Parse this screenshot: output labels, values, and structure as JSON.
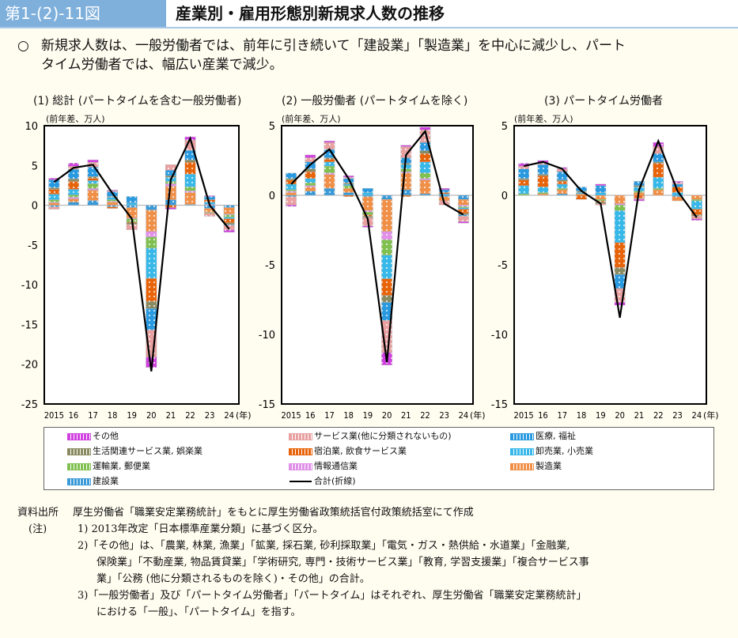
{
  "header": {
    "figure_label": "第1-(2)-11図",
    "title": "産業別・雇用形態別新規求人数の推移"
  },
  "summary": {
    "mark": "○",
    "line1": "新規求人数は、一般労働者では、前年に引き続いて「建設業」「製造業」を中心に減少し、パート",
    "line2": "タイム労働者では、幅広い産業で減少。"
  },
  "legend": [
    {
      "key": "other",
      "label": "その他",
      "color": "#d040e0"
    },
    {
      "key": "service",
      "label": "サービス業(他に分類されないもの)",
      "color": "#e8a0a0"
    },
    {
      "key": "medical",
      "label": "医療, 福祉",
      "color": "#2a9ae0"
    },
    {
      "key": "living",
      "label": "生活関連サービス業, 娯楽業",
      "color": "#8a8a60"
    },
    {
      "key": "hotel",
      "label": "宿泊業, 飲食サービス業",
      "color": "#e8640a"
    },
    {
      "key": "retail",
      "label": "卸売業, 小売業",
      "color": "#38b8e8"
    },
    {
      "key": "transport",
      "label": "運輸業, 郵便業",
      "color": "#80c050"
    },
    {
      "key": "info",
      "label": "情報通信業",
      "color": "#e090e8"
    },
    {
      "key": "manufacturing",
      "label": "製造業",
      "color": "#f09048"
    },
    {
      "key": "construction",
      "label": "建設業",
      "color": "#3a9ad8"
    },
    {
      "key": "total",
      "label": "合計(折線)",
      "color": "#000000"
    }
  ],
  "chart_data": [
    {
      "type": "bar",
      "title": "(1) 総計 (パートタイムを含む一般労働者)",
      "ylabel": "(前年差、万人)",
      "xlabel": "(年)",
      "categories": [
        "2015",
        "16",
        "17",
        "18",
        "19",
        "20",
        "21",
        "22",
        "23",
        "24"
      ],
      "ylim": [
        -25,
        10
      ],
      "yticks": [
        10,
        5,
        0,
        -5,
        -10,
        -15,
        -20,
        -25
      ],
      "series": [
        {
          "name": "建設業",
          "values": [
            -0.2,
            0.4,
            0.6,
            -0.2,
            -0.3,
            -0.6,
            0.7,
            0.1,
            -0.4,
            -0.3
          ]
        },
        {
          "name": "製造業",
          "values": [
            0.3,
            0.4,
            1.3,
            0.4,
            -1.3,
            -2.7,
            1.7,
            1.5,
            -0.5,
            -0.8
          ]
        },
        {
          "name": "情報通信業",
          "values": [
            0.1,
            0.2,
            0.2,
            0.1,
            -0.1,
            -0.7,
            0.3,
            0.2,
            0.1,
            -0.1
          ]
        },
        {
          "name": "運輸業, 郵便業",
          "values": [
            0.3,
            0.3,
            0.6,
            0.2,
            -0.4,
            -1.4,
            0.3,
            0.5,
            -0.1,
            -0.3
          ]
        },
        {
          "name": "卸売業, 小売業",
          "values": [
            0.7,
            0.7,
            0.4,
            0.3,
            0.3,
            -3.8,
            0.5,
            1.6,
            0.3,
            -0.2
          ]
        },
        {
          "name": "宿泊業, 飲食サービス業",
          "values": [
            0.6,
            1.0,
            0.3,
            -0.2,
            -0.1,
            -2.9,
            -0.3,
            1.5,
            0.3,
            -0.5
          ]
        },
        {
          "name": "生活関連サービス業, 娯楽業",
          "values": [
            0.2,
            0.3,
            0.2,
            0.1,
            -0.2,
            -0.9,
            0.2,
            0.3,
            0.0,
            -0.2
          ]
        },
        {
          "name": "医療, 福祉",
          "values": [
            1.0,
            1.2,
            1.2,
            0.6,
            0.8,
            -2.7,
            0.7,
            1.2,
            0.4,
            -0.1
          ]
        },
        {
          "name": "サービス業(他に分類されないもの)",
          "values": [
            -0.3,
            0.4,
            0.6,
            0.1,
            -0.7,
            -3.4,
            0.7,
            1.3,
            -0.4,
            -0.6
          ]
        },
        {
          "name": "その他",
          "values": [
            0.2,
            0.4,
            0.3,
            0.1,
            0.0,
            -1.3,
            -0.2,
            0.4,
            0.1,
            -0.3
          ]
        }
      ],
      "total": [
        2.9,
        4.7,
        5.1,
        1.5,
        -1.7,
        -20.9,
        3.2,
        8.4,
        0.0,
        -3.0
      ]
    },
    {
      "type": "bar",
      "title": "(2) 一般労働者 (パートタイムを除く)",
      "ylabel": "(前年差、万人)",
      "xlabel": "(年)",
      "categories": [
        "2015",
        "16",
        "17",
        "18",
        "19",
        "20",
        "21",
        "22",
        "23",
        "24"
      ],
      "ylim": [
        -15,
        5
      ],
      "yticks": [
        5,
        0,
        -5,
        -10,
        -15
      ],
      "series": [
        {
          "name": "建設業",
          "values": [
            -0.1,
            0.3,
            0.5,
            0.2,
            -0.1,
            -0.3,
            0.4,
            0.1,
            -0.1,
            -0.3
          ]
        },
        {
          "name": "製造業",
          "values": [
            0.2,
            0.3,
            1.0,
            0.3,
            -1.0,
            -2.3,
            1.2,
            1.0,
            -0.3,
            -0.4
          ]
        },
        {
          "name": "情報通信業",
          "values": [
            0.1,
            0.1,
            0.1,
            0.0,
            -0.1,
            -0.6,
            0.1,
            0.1,
            0.0,
            -0.1
          ]
        },
        {
          "name": "運輸業, 郵便業",
          "values": [
            0.1,
            0.2,
            0.5,
            0.2,
            -0.2,
            -1.1,
            0.2,
            0.4,
            0.0,
            -0.1
          ]
        },
        {
          "name": "卸売業, 小売業",
          "values": [
            0.4,
            0.3,
            0.3,
            0.1,
            0.2,
            -1.7,
            0.3,
            0.8,
            0.1,
            -0.1
          ]
        },
        {
          "name": "宿泊業, 飲食サービス業",
          "values": [
            0.3,
            0.5,
            0.2,
            -0.1,
            -0.1,
            -1.2,
            -0.1,
            0.6,
            0.1,
            -0.3
          ]
        },
        {
          "name": "生活関連サービス業, 娯楽業",
          "values": [
            0.1,
            0.2,
            0.1,
            0.1,
            -0.1,
            -0.5,
            0.1,
            0.2,
            0.0,
            -0.1
          ]
        },
        {
          "name": "医療, 福祉",
          "values": [
            0.4,
            0.5,
            0.6,
            0.3,
            0.3,
            -1.3,
            0.4,
            0.6,
            0.2,
            -0.1
          ]
        },
        {
          "name": "サービス業(他に分類されないもの)",
          "values": [
            -0.6,
            0.3,
            0.5,
            0.1,
            -0.6,
            -2.3,
            0.8,
            0.9,
            -0.3,
            -0.4
          ]
        },
        {
          "name": "その他",
          "values": [
            -0.1,
            0.2,
            0.1,
            0.1,
            -0.1,
            -0.9,
            0.1,
            0.2,
            0.1,
            -0.1
          ]
        }
      ],
      "total": [
        0.8,
        2.2,
        3.3,
        1.2,
        -1.7,
        -12.0,
        2.9,
        4.6,
        -0.6,
        -1.4
      ]
    },
    {
      "type": "bar",
      "title": "(3) パートタイム労働者",
      "ylabel": "(前年差、万人)",
      "xlabel": "(年)",
      "categories": [
        "2015",
        "16",
        "17",
        "18",
        "19",
        "20",
        "21",
        "22",
        "23",
        "24"
      ],
      "ylim": [
        -15,
        5
      ],
      "yticks": [
        5,
        0,
        -5,
        -10,
        -15
      ],
      "series": [
        {
          "name": "建設業",
          "values": [
            0.0,
            0.0,
            0.1,
            0.0,
            0.0,
            0.0,
            0.0,
            0.0,
            -0.1,
            0.0
          ]
        },
        {
          "name": "製造業",
          "values": [
            0.0,
            0.1,
            0.3,
            0.1,
            -0.3,
            -0.6,
            0.2,
            0.4,
            -0.3,
            -0.3
          ]
        },
        {
          "name": "情報通信業",
          "values": [
            0.0,
            0.0,
            0.0,
            0.0,
            0.0,
            -0.1,
            0.0,
            0.0,
            0.0,
            0.0
          ]
        },
        {
          "name": "運輸業, 郵便業",
          "values": [
            0.1,
            0.1,
            0.1,
            0.0,
            -0.1,
            -0.4,
            0.1,
            0.1,
            0.0,
            -0.1
          ]
        },
        {
          "name": "卸売業, 小売業",
          "values": [
            0.6,
            0.4,
            0.3,
            0.1,
            0.2,
            -2.3,
            0.3,
            0.8,
            0.2,
            -0.6
          ]
        },
        {
          "name": "宿泊業, 飲食サービス業",
          "values": [
            0.4,
            0.8,
            0.2,
            -0.3,
            -0.1,
            -1.8,
            -0.2,
            1.0,
            0.4,
            -0.4
          ]
        },
        {
          "name": "生活関連サービス業, 娯楽業",
          "values": [
            0.1,
            0.1,
            0.1,
            0.1,
            -0.1,
            -0.5,
            0.1,
            0.1,
            0.0,
            -0.1
          ]
        },
        {
          "name": "医療, 福祉",
          "values": [
            0.7,
            0.7,
            0.6,
            0.3,
            0.5,
            -1.0,
            0.3,
            0.6,
            0.2,
            0.0
          ]
        },
        {
          "name": "サービス業(他に分類されないもの)",
          "values": [
            0.2,
            0.1,
            0.2,
            0.0,
            -0.1,
            -1.0,
            -0.1,
            0.5,
            0.1,
            -0.2
          ]
        },
        {
          "name": "その他",
          "values": [
            0.2,
            0.2,
            0.1,
            0.0,
            0.1,
            -0.2,
            -0.1,
            0.3,
            0.1,
            -0.1
          ]
        }
      ],
      "total": [
        2.1,
        2.4,
        1.9,
        0.3,
        -0.6,
        -8.8,
        0.4,
        3.9,
        0.3,
        -1.6
      ]
    }
  ],
  "notes": {
    "source_label": "資料出所",
    "source_text": "厚生労働省「職業安定業務統計」をもとに厚生労働省政策統括官付政策統括室にて作成",
    "note_label": "(注)",
    "note1": "1) 2013年改定「日本標準産業分類」に基づく区分。",
    "note2a": "2)「その他」は、「農業, 林業, 漁業」「鉱業, 採石業, 砂利採取業」「電気・ガス・熱供給・水道業」「金融業,",
    "note2b": "保険業」「不動産業, 物品賃貸業」「学術研究, 専門・技術サービス業」「教育, 学習支援業」「複合サービス事",
    "note2c": "業」「公務 (他に分類されるものを除く)・その他」の合計。",
    "note3a": "3)「一般労働者」及び「パートタイム労働者」「パートタイム」はそれぞれ、厚生労働省「職業安定業務統計」",
    "note3b": "における「一般」、「パートタイム」を指す。"
  }
}
